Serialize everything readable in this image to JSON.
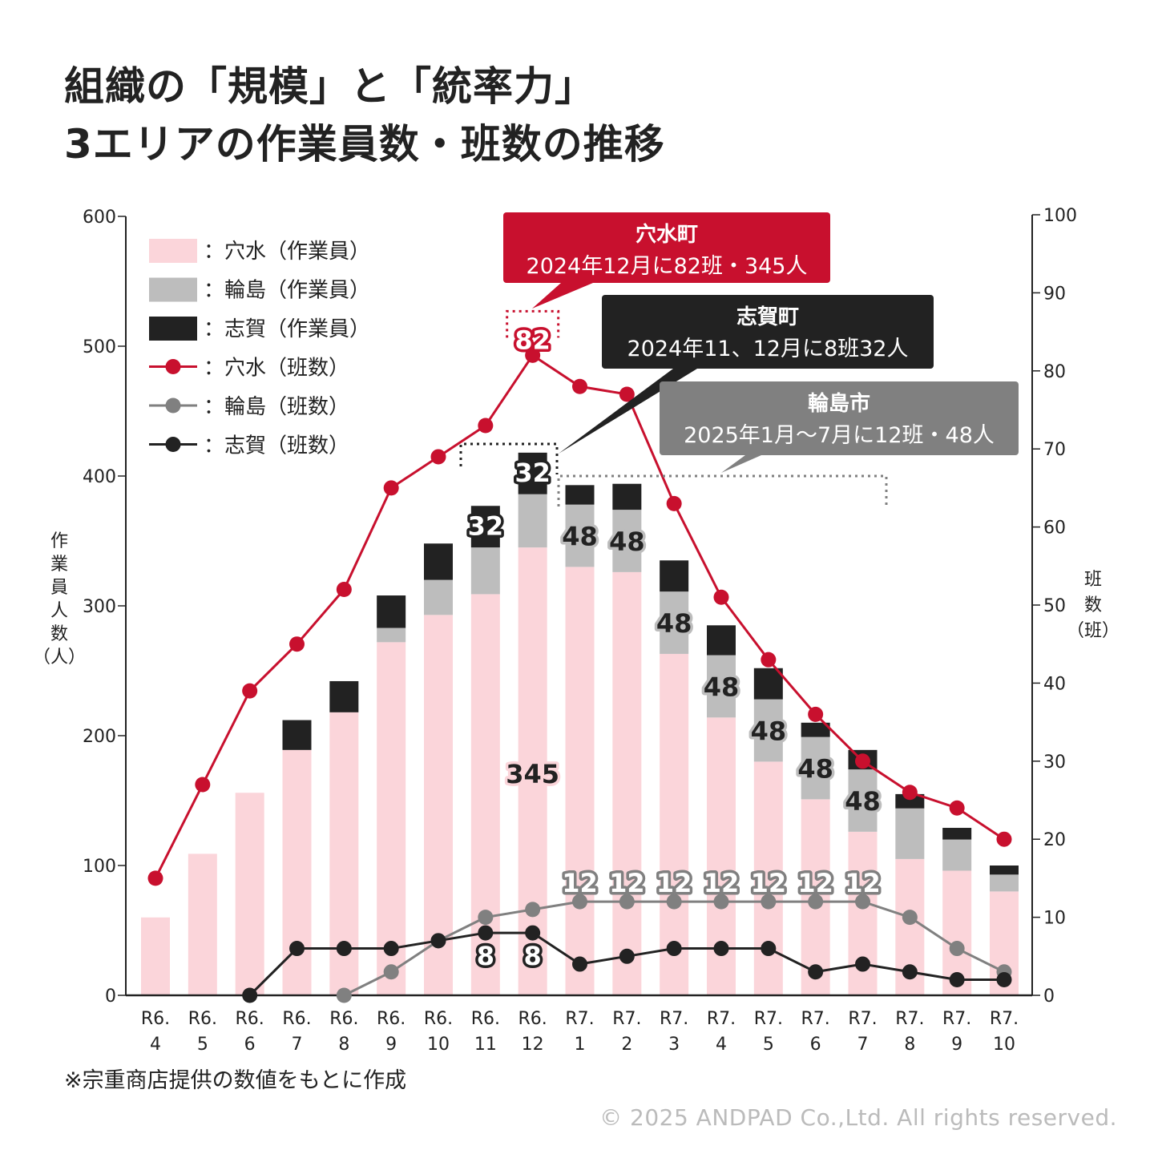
{
  "title": {
    "line1": "組織の「規模」と「統率力」",
    "line2": "3エリアの作業員数・班数の推移"
  },
  "footer": {
    "note": "※宗重商店提供の数値をもとに作成",
    "copyright": "© 2025 ANDPAD Co.,Ltd. All rights reserved."
  },
  "colors": {
    "anamizu_bar": "#fbd5da",
    "wajima_bar": "#bdbdbd",
    "shiga_bar": "#222222",
    "anamizu_line": "#c8102e",
    "wajima_line": "#808080",
    "shiga_line": "#222222"
  },
  "callouts": [
    {
      "name": "anamizu",
      "heading": "穴水町",
      "text": "2024年12月に82班・345人",
      "color": "#c8102e"
    },
    {
      "name": "shiga",
      "heading": "志賀町",
      "text": "2024年11、12月に8班32人",
      "color": "#222222"
    },
    {
      "name": "wajima",
      "heading": "輪島市",
      "text": "2025年1月〜7月に12班・48人",
      "color": "#808080"
    }
  ],
  "chart_data": {
    "type": "bar",
    "title": "組織の「規模」と「統率力」 3エリアの作業員数・班数の推移",
    "categories": [
      "R6.\n4",
      "R6.\n5",
      "R6.\n6",
      "R6.\n7",
      "R6.\n8",
      "R6.\n9",
      "R6.\n10",
      "R6.\n11",
      "R6.\n12",
      "R7.\n1",
      "R7.\n2",
      "R7.\n3",
      "R7.\n4",
      "R7.\n5",
      "R7.\n6",
      "R7.\n7",
      "R7.\n8",
      "R7.\n9",
      "R7.\n10"
    ],
    "ylabel": "作業員人数（人）",
    "y2label": "班数（班）",
    "ylim": [
      0,
      600
    ],
    "yticks": [
      0,
      100,
      200,
      300,
      400,
      500,
      600
    ],
    "y2lim": [
      0,
      100
    ],
    "y2ticks": [
      0,
      10,
      20,
      30,
      40,
      50,
      60,
      70,
      80,
      90,
      100
    ],
    "grid": false,
    "legend_position": "top-left",
    "bar_series": [
      {
        "name": "：穴水（作業員）",
        "key": "anamizu",
        "values": [
          60,
          109,
          156,
          189,
          218,
          272,
          293,
          309,
          345,
          330,
          326,
          263,
          214,
          180,
          151,
          126,
          105,
          96,
          80
        ]
      },
      {
        "name": "：輪島（作業員）",
        "key": "wajima",
        "values": [
          0,
          0,
          0,
          0,
          0,
          11,
          27,
          36,
          41,
          48,
          48,
          48,
          48,
          48,
          48,
          48,
          39,
          24,
          13
        ]
      },
      {
        "name": "：志賀（作業員）",
        "key": "shiga",
        "values": [
          0,
          0,
          0,
          23,
          24,
          25,
          28,
          32,
          32,
          15,
          20,
          24,
          23,
          24,
          11,
          15,
          11,
          9,
          7
        ]
      }
    ],
    "line_series": [
      {
        "name": "：穴水（班数）",
        "key": "anamizu",
        "axis": "right",
        "values": [
          15,
          27,
          39,
          45,
          52,
          65,
          69,
          73,
          82,
          78,
          77,
          63,
          51,
          43,
          36,
          30,
          26,
          24,
          20
        ]
      },
      {
        "name": "：輪島（班数）",
        "key": "wajima",
        "axis": "right",
        "values": [
          null,
          null,
          null,
          null,
          0,
          3,
          7,
          10,
          11,
          12,
          12,
          12,
          12,
          12,
          12,
          12,
          10,
          6,
          3
        ]
      },
      {
        "name": "：志賀（班数）",
        "key": "shiga",
        "axis": "right",
        "values": [
          null,
          null,
          0,
          6,
          6,
          6,
          7,
          8,
          8,
          4,
          5,
          6,
          6,
          6,
          3,
          4,
          3,
          2,
          2
        ]
      }
    ],
    "annotations": [
      {
        "series": "anamizu_line",
        "index": 8,
        "label": "82"
      },
      {
        "series": "anamizu_bar",
        "index": 8,
        "label": "345"
      },
      {
        "series": "shiga_bar",
        "index": 7,
        "label": "32"
      },
      {
        "series": "shiga_bar",
        "index": 8,
        "label": "32"
      },
      {
        "series": "shiga_line",
        "index": 7,
        "label": "8"
      },
      {
        "series": "shiga_line",
        "index": 8,
        "label": "8"
      },
      {
        "series": "wajima_bar",
        "index": 9,
        "label": "48"
      },
      {
        "series": "wajima_bar",
        "index": 10,
        "label": "48"
      },
      {
        "series": "wajima_bar",
        "index": 11,
        "label": "48"
      },
      {
        "series": "wajima_bar",
        "index": 12,
        "label": "48"
      },
      {
        "series": "wajima_bar",
        "index": 13,
        "label": "48"
      },
      {
        "series": "wajima_bar",
        "index": 14,
        "label": "48"
      },
      {
        "series": "wajima_bar",
        "index": 15,
        "label": "48"
      },
      {
        "series": "wajima_line",
        "index": 9,
        "label": "12"
      },
      {
        "series": "wajima_line",
        "index": 10,
        "label": "12"
      },
      {
        "series": "wajima_line",
        "index": 11,
        "label": "12"
      },
      {
        "series": "wajima_line",
        "index": 12,
        "label": "12"
      },
      {
        "series": "wajima_line",
        "index": 13,
        "label": "12"
      },
      {
        "series": "wajima_line",
        "index": 14,
        "label": "12"
      },
      {
        "series": "wajima_line",
        "index": 15,
        "label": "12"
      }
    ]
  }
}
